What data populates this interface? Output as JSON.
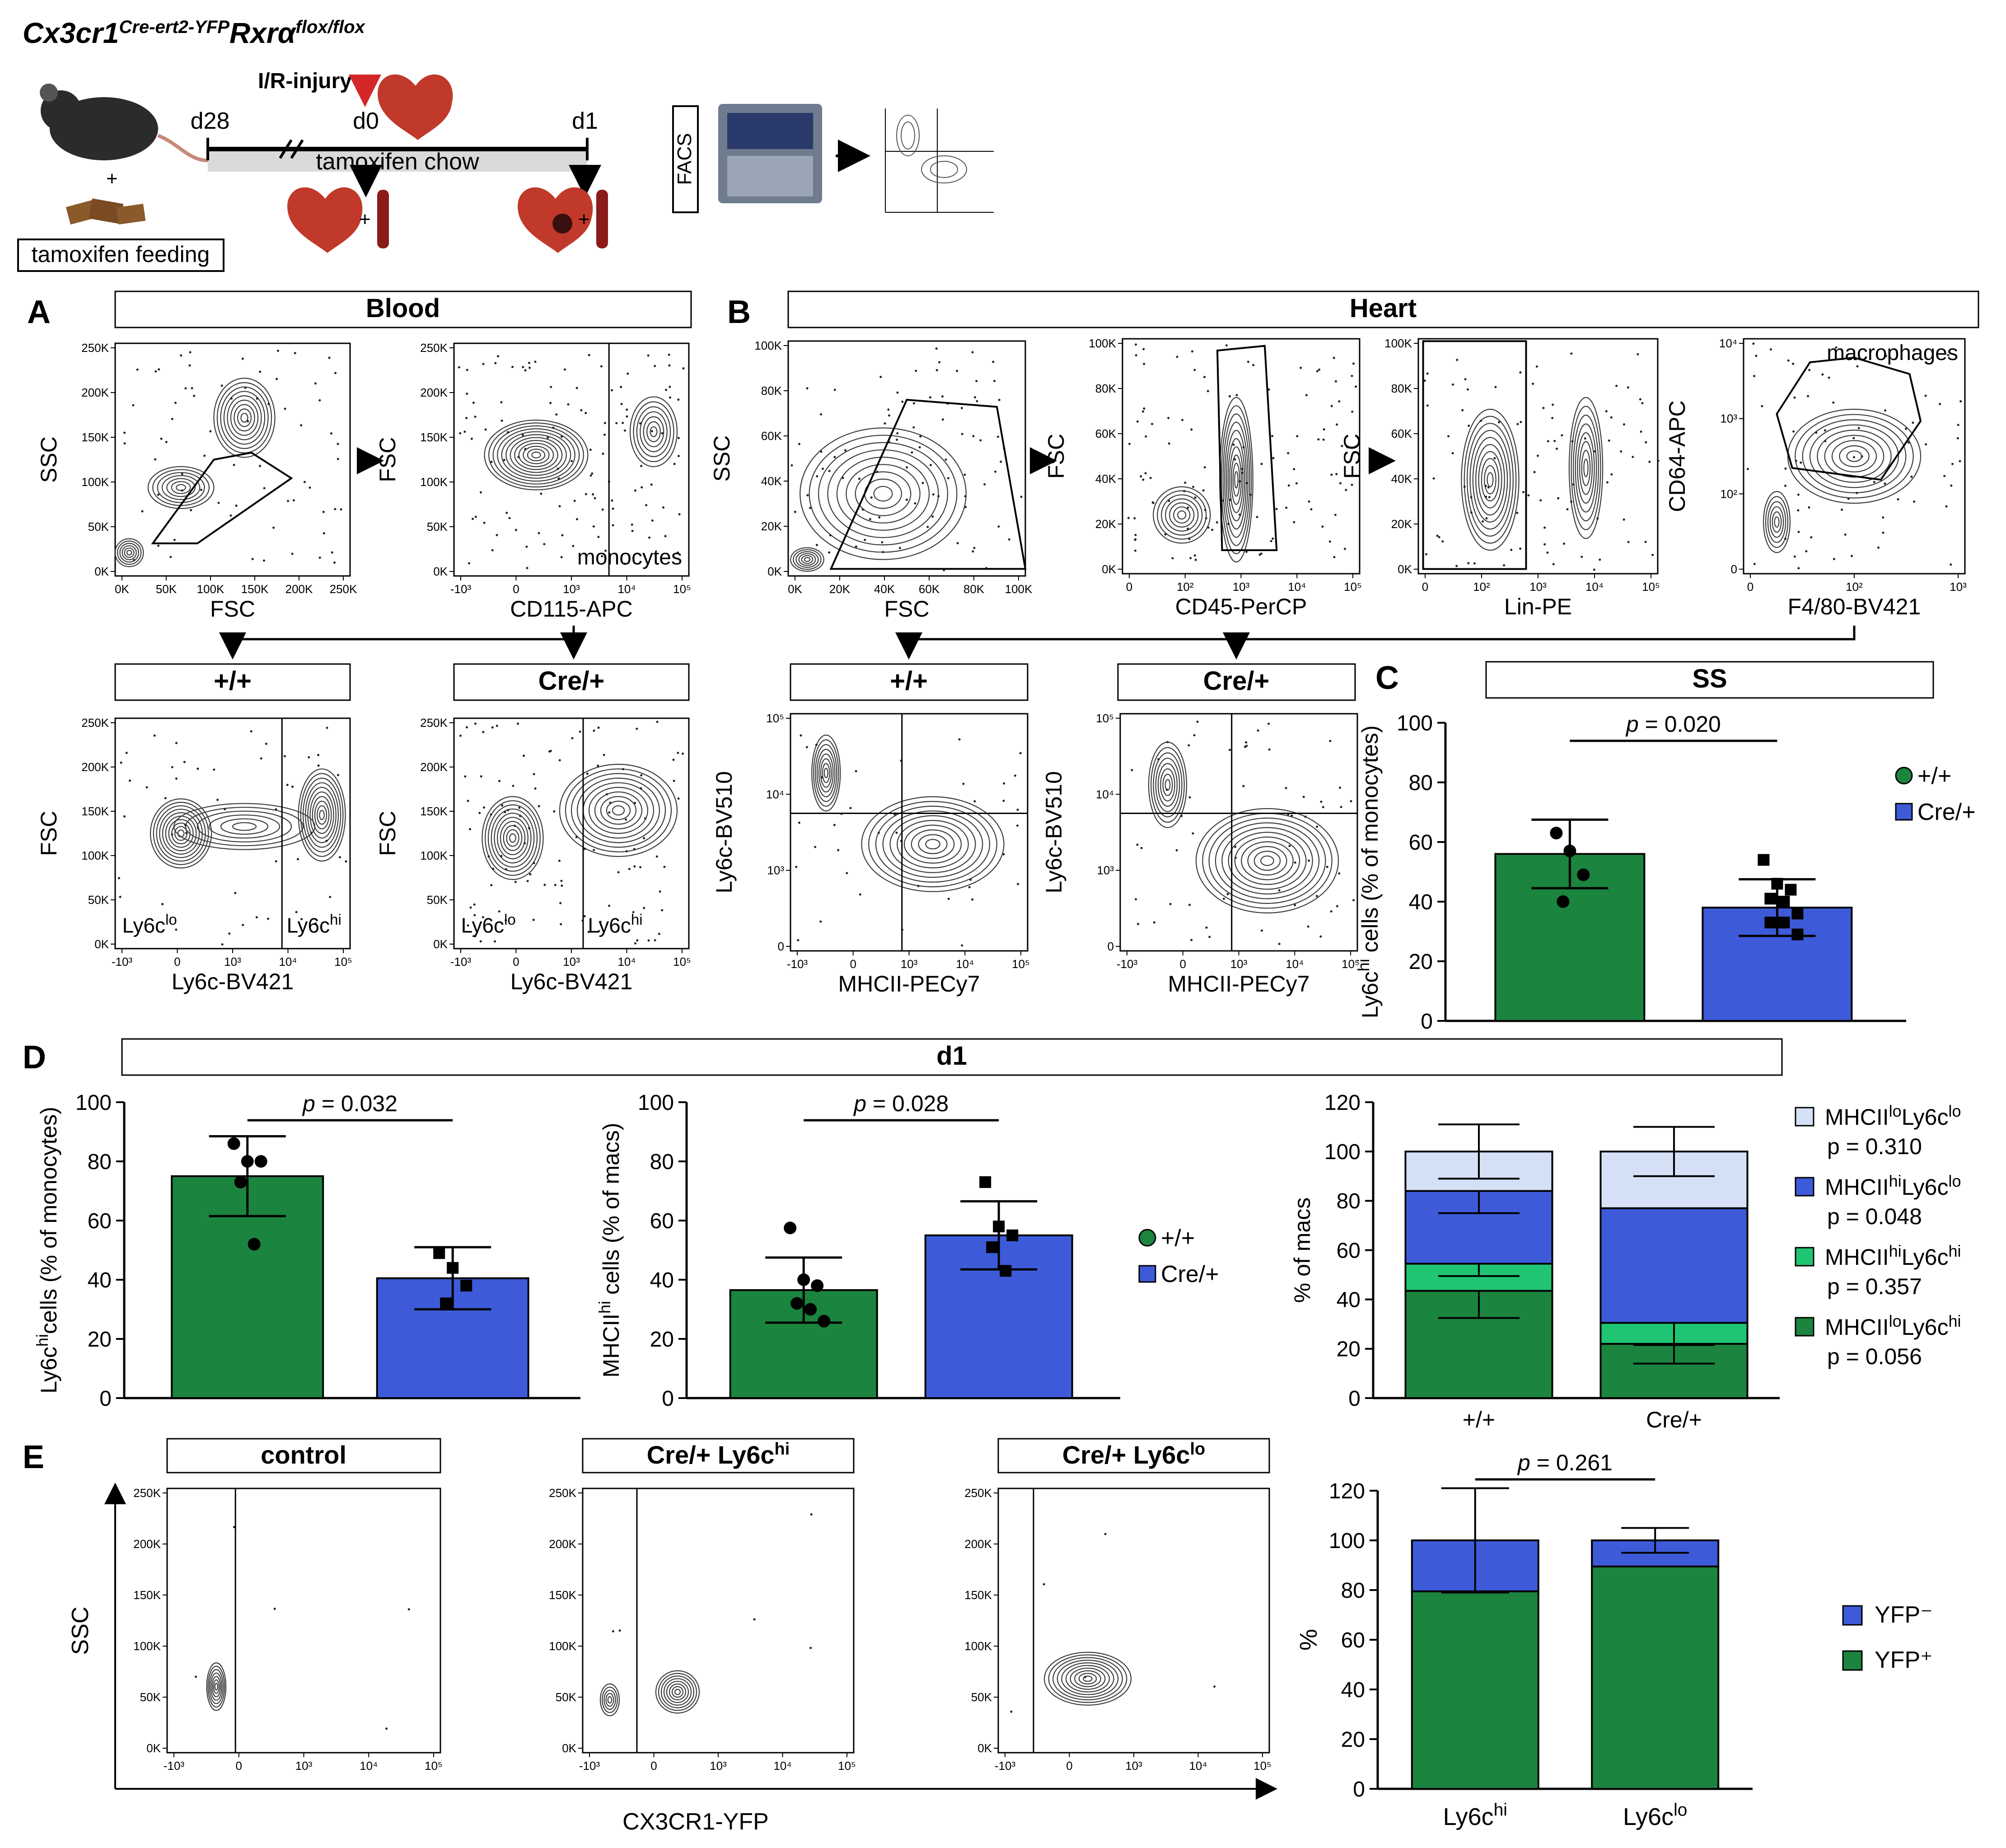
{
  "header": {
    "genotype": "Cx3cr1",
    "genotype_sup": "Cre-ert2-YFP",
    "genotype2": "Rxrα",
    "genotype2_sup": "flox/flox",
    "injury": "I/R-injury",
    "day_minus": "d28",
    "day0": "d0",
    "day1": "d1",
    "chow": "tamoxifen chow",
    "feeding": "tamoxifen feeding",
    "plus": "+",
    "facs": "FACS"
  },
  "panel_letters": {
    "a": "A",
    "b": "B",
    "c": "C",
    "d": "D",
    "e": "E"
  },
  "headers": {
    "blood": "Blood",
    "heart": "Heart",
    "wt": "+/+",
    "cre": "Cre/+",
    "ss": "SS",
    "d1": "d1",
    "control": "control",
    "cre_hi": "Cre/+ Ly6c",
    "cre_lo": "Cre/+ Ly6c",
    "hi": "hi",
    "lo": "lo"
  },
  "flow": {
    "blood_fsc_ssc": {
      "xlabel": "FSC",
      "ylabel": "SSC"
    },
    "blood_cd115": {
      "xlabel": "CD115-APC",
      "ylabel": "FSC",
      "gate_label": "monocytes"
    },
    "blood_wt": {
      "xlabel": "Ly6c-BV421",
      "ylabel": "FSC",
      "lo_label": "Ly6c",
      "hi_label": "Ly6c",
      "sup_lo": "lo",
      "sup_hi": "hi"
    },
    "blood_cre": {
      "xlabel": "Ly6c-BV421",
      "ylabel": "FSC"
    },
    "heart_fsc_ssc": {
      "xlabel": "FSC",
      "ylabel": "SSC"
    },
    "heart_cd45": {
      "xlabel": "CD45-PerCP",
      "ylabel": "FSC"
    },
    "heart_lin": {
      "xlabel": "Lin-PE",
      "ylabel": "FSC"
    },
    "heart_f480": {
      "xlabel": "F4/80-BV421",
      "ylabel": "CD64-APC",
      "gate_label": "macrophages"
    },
    "heart_wt": {
      "xlabel": "MHCII-PECy7",
      "ylabel": "Ly6c-BV510"
    },
    "heart_cre": {
      "xlabel": "MHCII-PECy7",
      "ylabel": "Ly6c-BV510"
    },
    "e_x": "CX3CR1-YFP",
    "e_y": "SSC"
  },
  "ticks": {
    "k250": [
      "250K",
      "200K",
      "150K",
      "100K",
      "50K",
      "0K"
    ],
    "k250x": [
      "0K",
      "50K",
      "100K",
      "150K",
      "200K",
      "250K"
    ],
    "k100": [
      "100K",
      "80K",
      "60K",
      "40K",
      "20K",
      "0K"
    ],
    "k100x": [
      "0K",
      "20K",
      "40K",
      "60K",
      "80K",
      "100K"
    ],
    "log": [
      "-10³",
      "0",
      "10³",
      "10⁴",
      "10⁵"
    ],
    "log_heart": [
      "0",
      "10²",
      "10³",
      "10⁴",
      "10⁵"
    ],
    "log_y": [
      "10⁵",
      "10⁴",
      "10³",
      "0"
    ],
    "cd64_y": [
      "10⁴",
      "10³",
      "10²",
      "0"
    ],
    "f480_x": [
      "0",
      "10²",
      "10³"
    ]
  },
  "legend": {
    "wt": "+/+",
    "cre": "Cre/+",
    "yfp_neg": "YFP⁻",
    "yfp_pos": "YFP⁺"
  },
  "colors": {
    "green": "#1b843f",
    "blue": "#3d5bd9",
    "lightgreen": "#1fc573",
    "lightblue": "#d3e0f5",
    "red": "#d62728"
  },
  "chart_data": [
    {
      "id": "C_ly6chi_ss",
      "type": "bar",
      "categories": [
        "+/+",
        "Cre/+"
      ],
      "values": [
        56,
        38
      ],
      "errors": [
        11.5,
        9.5
      ],
      "points": [
        [
          63,
          57,
          49,
          40
        ],
        [
          54,
          46,
          44,
          41,
          40,
          36,
          33,
          33,
          29
        ]
      ],
      "ylim": [
        0,
        100
      ],
      "yticks": [
        0,
        20,
        40,
        60,
        80,
        100
      ],
      "ylabel": "Ly6c",
      "ylabel_sup": "hi",
      "ylabel_rest": " cells (% of monocytes)",
      "pvalue_label": "p",
      "pvalue": "= 0.020"
    },
    {
      "id": "D_ly6chi_d1",
      "type": "bar",
      "categories": [
        "+/+",
        "Cre/+"
      ],
      "values": [
        75,
        40.5
      ],
      "errors": [
        13.5,
        10.5
      ],
      "points": [
        [
          86,
          80,
          80,
          73,
          52
        ],
        [
          49,
          44,
          38,
          32
        ]
      ],
      "ylim": [
        0,
        100
      ],
      "yticks": [
        0,
        20,
        40,
        60,
        80,
        100
      ],
      "ylabel": "Ly6c",
      "ylabel_sup": "hi",
      "ylabel_rest": "cells (% of monocytes)",
      "pvalue_label": "p",
      "pvalue": "= 0.032"
    },
    {
      "id": "D_mhciihi_d1",
      "type": "bar",
      "categories": [
        "+/+",
        "Cre/+"
      ],
      "values": [
        36.5,
        55
      ],
      "errors": [
        11,
        11.5
      ],
      "points": [
        [
          57.5,
          40,
          38,
          32,
          30,
          26
        ],
        [
          73,
          58,
          55,
          51,
          43
        ]
      ],
      "ylim": [
        0,
        100
      ],
      "yticks": [
        0,
        20,
        40,
        60,
        80,
        100
      ],
      "ylabel": "MHCII",
      "ylabel_sup": "hi",
      "ylabel_rest": " cells (% of macs)",
      "pvalue_label": "p",
      "pvalue": "= 0.028"
    },
    {
      "id": "D_macs_stacked",
      "type": "bar",
      "stacked": true,
      "categories": [
        "+/+",
        "Cre/+"
      ],
      "ylim": [
        0,
        120
      ],
      "yticks": [
        0,
        20,
        40,
        60,
        80,
        100,
        120
      ],
      "ylabel": "% of macs",
      "series": [
        {
          "name": "MHCII",
          "sup1": "lo",
          "name2": "Ly6c",
          "sup2": "hi",
          "p": "p = 0.056",
          "values": [
            43.5,
            22
          ],
          "errors": [
            11,
            8
          ]
        },
        {
          "name": "MHCII",
          "sup1": "hi",
          "name2": "Ly6c",
          "sup2": "hi",
          "p": "p = 0.357",
          "values": [
            11,
            8.5
          ],
          "errors": [
            5,
            9
          ]
        },
        {
          "name": "MHCII",
          "sup1": "hi",
          "name2": "Ly6c",
          "sup2": "lo",
          "p": "p = 0.048",
          "values": [
            29.5,
            46.5
          ],
          "errors": [
            9,
            0
          ]
        },
        {
          "name": "MHCII",
          "sup1": "lo",
          "name2": "Ly6c",
          "sup2": "lo",
          "p": "p = 0.310",
          "values": [
            16,
            23
          ],
          "errors": [
            11,
            10
          ]
        }
      ]
    },
    {
      "id": "E_yfp_stacked",
      "type": "bar",
      "stacked": true,
      "categories": [
        "Ly6c",
        "Ly6c"
      ],
      "category_sups": [
        "hi",
        "lo"
      ],
      "ylim": [
        0,
        120
      ],
      "yticks": [
        0,
        20,
        40,
        60,
        80,
        100,
        120
      ],
      "ylabel": "%",
      "pvalue_label": "p",
      "pvalue": "= 0.261",
      "series": [
        {
          "name": "YFP⁺",
          "values": [
            79.5,
            89.5
          ],
          "errors": [
            21,
            5
          ]
        },
        {
          "name": "YFP⁻",
          "values": [
            20.5,
            10.5
          ],
          "errors": [
            21,
            5
          ]
        }
      ]
    }
  ]
}
